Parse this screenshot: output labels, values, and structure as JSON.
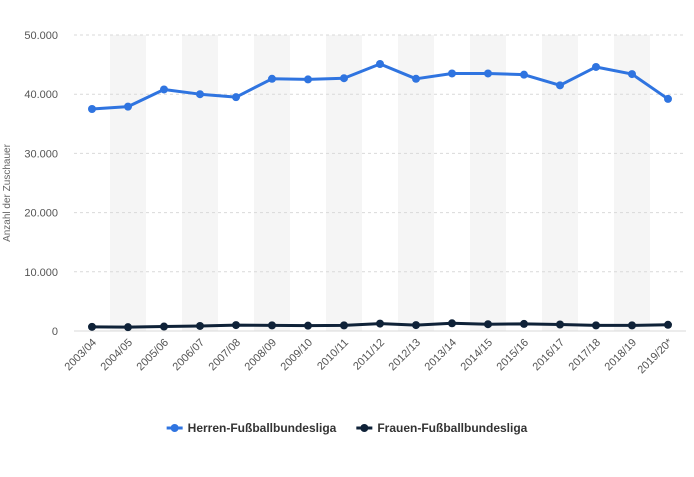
{
  "chart_data": {
    "type": "line",
    "title": "",
    "xlabel": "",
    "ylabel": "Anzahl der Zuschauer",
    "ylim": [
      0,
      50000
    ],
    "yticks": [
      0,
      10000,
      20000,
      30000,
      40000,
      50000
    ],
    "ytick_labels": [
      "0",
      "10.000",
      "20.000",
      "30.000",
      "40.000",
      "50.000"
    ],
    "categories": [
      "2003/04",
      "2004/05",
      "2005/06",
      "2006/07",
      "2007/08",
      "2008/09",
      "2009/10",
      "2010/11",
      "2011/12",
      "2012/13",
      "2013/14",
      "2014/15",
      "2015/16",
      "2016/17",
      "2017/18",
      "2018/19",
      "2019/20*"
    ],
    "grid": true,
    "legend_position": "bottom-center",
    "series": [
      {
        "name": "Herren-Fußballbundesliga",
        "color": "#2f74e0",
        "values": [
          37500,
          37900,
          40800,
          40000,
          39500,
          42600,
          42500,
          42700,
          45100,
          42600,
          43500,
          43500,
          43300,
          41500,
          44600,
          43400,
          39200
        ]
      },
      {
        "name": "Frauen-Fußballbundesliga",
        "color": "#0f2238",
        "values": [
          700,
          650,
          750,
          850,
          1000,
          950,
          900,
          950,
          1250,
          1000,
          1300,
          1150,
          1200,
          1100,
          950,
          950,
          1050
        ]
      }
    ]
  }
}
